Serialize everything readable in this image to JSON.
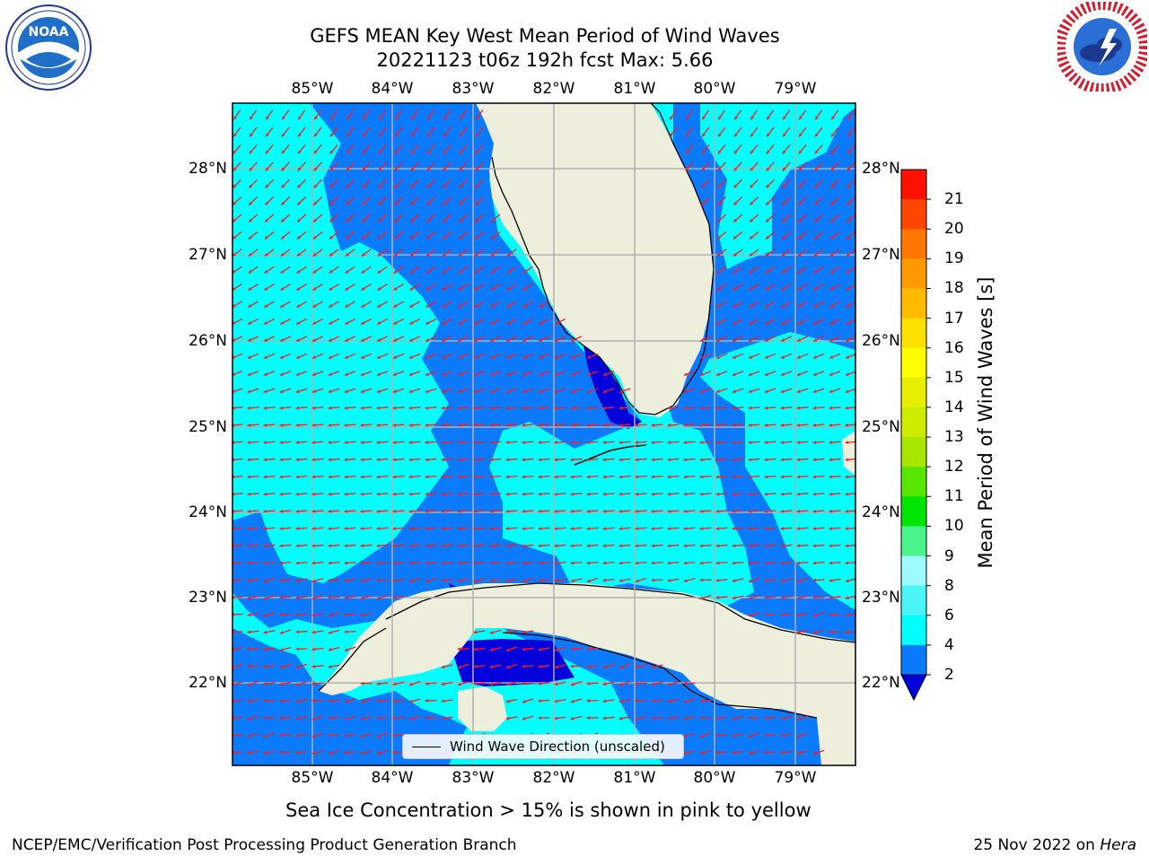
{
  "header": {
    "title_line1": "GEFS MEAN Key West Mean Period of Wind Waves",
    "title_line2": "20221123 t06z 192h fcst   Max: 5.66"
  },
  "logos": {
    "noaa": {
      "icon": "noaa-logo",
      "text": "NOAA"
    },
    "nws": {
      "icon": "nws-logo"
    }
  },
  "map": {
    "lon_labels": [
      "85°W",
      "84°W",
      "83°W",
      "82°W",
      "81°W",
      "80°W",
      "79°W"
    ],
    "lat_labels": [
      "28°N",
      "27°N",
      "26°N",
      "25°N",
      "24°N",
      "23°N",
      "22°N"
    ],
    "legend_label": "Wind Wave Direction (unscaled)",
    "colors": {
      "ocean_2_4": "#0a7bff",
      "ocean_4_6": "#00ffff",
      "ocean_under_2": "#0000dc",
      "land": "#eeeedc",
      "arrows": "#ff1a1a",
      "grid": "#b0b0b0"
    }
  },
  "colorbar": {
    "label": "Mean Period of Wind Waves [s]",
    "ticks": [
      "2",
      "4",
      "6",
      "8",
      "9",
      "10",
      "11",
      "12",
      "13",
      "14",
      "15",
      "16",
      "17",
      "18",
      "19",
      "20",
      "21"
    ],
    "colors": [
      "#0a7bff",
      "#00ffff",
      "#4cf5f5",
      "#9dfbff",
      "#4cf58c",
      "#00e600",
      "#56e600",
      "#a8e600",
      "#ccec00",
      "#e8ee00",
      "#ffff00",
      "#ffe100",
      "#ffbb00",
      "#ff9900",
      "#ff7700",
      "#ff4500",
      "#ff1100"
    ],
    "underflow_color": "#0000dc"
  },
  "caption": "Sea Ice Concentration > 15% is shown in pink to yellow",
  "footer": {
    "left": "NCEP/EMC/Verification Post Processing Product Generation Branch",
    "date": "25 Nov 2022 on ",
    "host": "Hera"
  }
}
